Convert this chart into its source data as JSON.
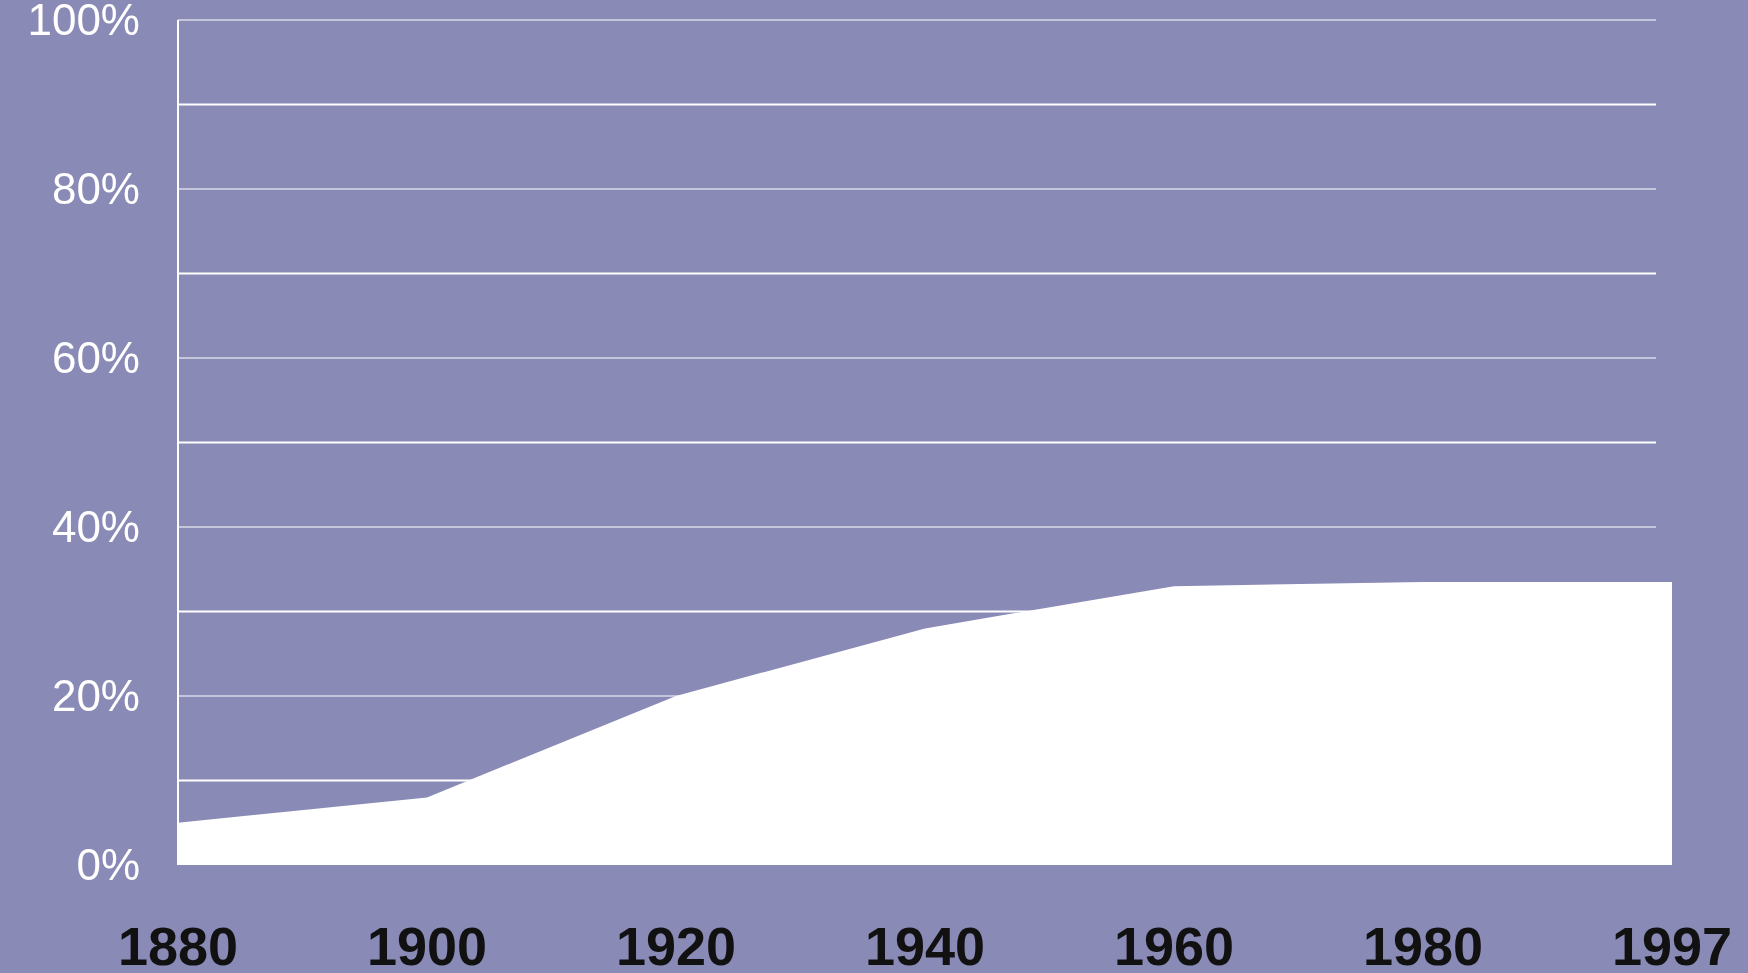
{
  "chart_data": {
    "type": "area",
    "categories": [
      "1880",
      "1900",
      "1920",
      "1940",
      "1960",
      "1980",
      "1997"
    ],
    "values": [
      5,
      8,
      20,
      28,
      33,
      33.5,
      33.5
    ],
    "color": "#ffffff",
    "ylim": [
      0,
      100
    ],
    "yticks": [
      {
        "value": 0,
        "label": "0%"
      },
      {
        "value": 10,
        "label": null
      },
      {
        "value": 20,
        "label": "20%"
      },
      {
        "value": 30,
        "label": null
      },
      {
        "value": 40,
        "label": "40%"
      },
      {
        "value": 50,
        "label": null
      },
      {
        "value": 60,
        "label": "60%"
      },
      {
        "value": 70,
        "label": null
      },
      {
        "value": 80,
        "label": "80%"
      },
      {
        "value": 90,
        "label": null
      },
      {
        "value": 100,
        "label": "100%"
      }
    ],
    "grid": "y"
  }
}
